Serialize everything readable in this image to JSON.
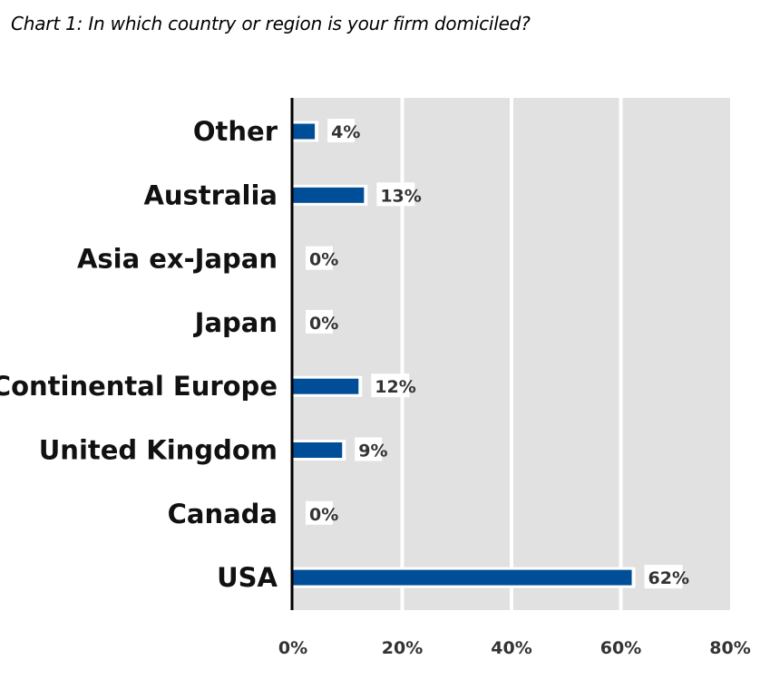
{
  "chart_data": {
    "type": "bar",
    "orientation": "horizontal",
    "title": "Chart 1: In which country or region is your firm domiciled?",
    "categories": [
      "Other",
      "Australia",
      "Asia ex-Japan",
      "Japan",
      "Continental Europe",
      "United Kingdom",
      "Canada",
      "USA"
    ],
    "values": [
      4,
      13,
      0,
      0,
      12,
      9,
      0,
      62
    ],
    "value_labels": [
      "4%",
      "13%",
      "0%",
      "0%",
      "12%",
      "9%",
      "0%",
      "62%"
    ],
    "xlim": [
      0,
      80
    ],
    "xticks": [
      0,
      20,
      40,
      60,
      80
    ],
    "xtick_labels": [
      "0%",
      "20%",
      "40%",
      "60%",
      "80%"
    ],
    "grid": true,
    "colors": {
      "bar": "#004E97",
      "plot_background": "#E1E1E1",
      "gridline": "#FFFFFF",
      "axis": "#000000"
    }
  }
}
